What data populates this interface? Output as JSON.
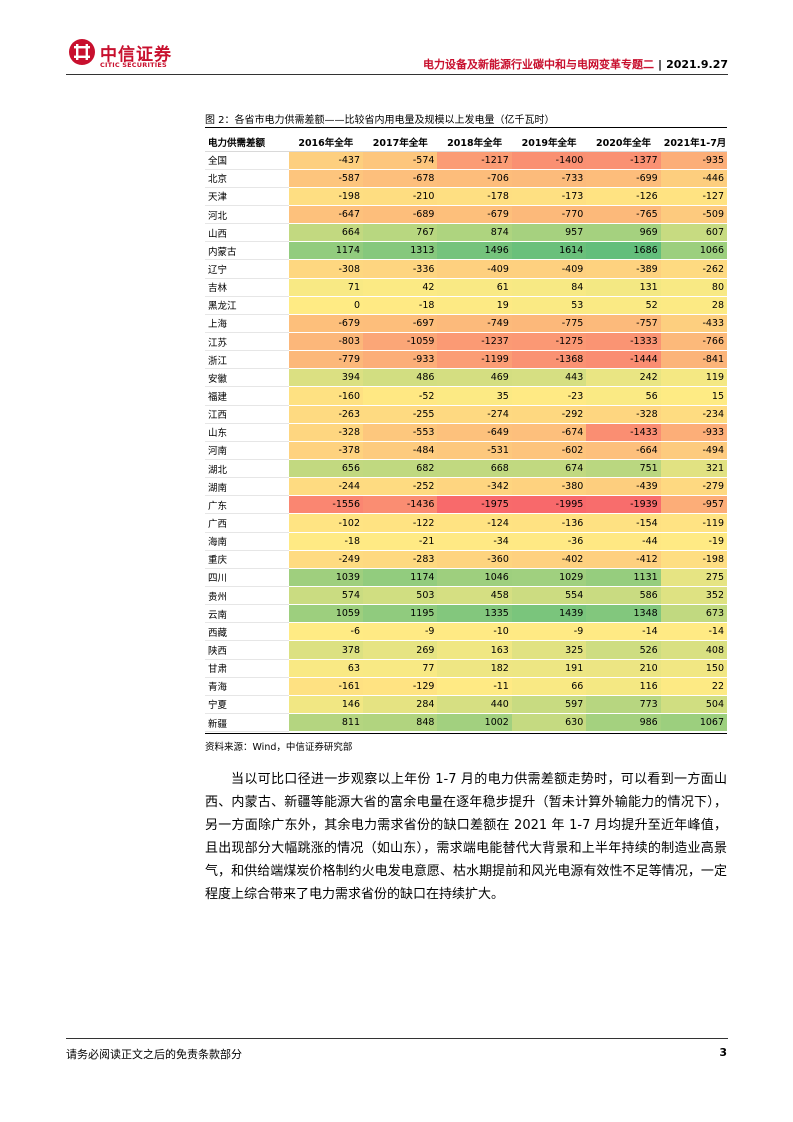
{
  "header": {
    "logo_cn": "中信证券",
    "logo_en": "CITIC SECURITIES",
    "report_title": "电力设备及新能源行业碳中和与电网变革专题二",
    "separator": "|",
    "date": "2021.9.27"
  },
  "figure": {
    "title": "图 2：各省市电力供需差额——比较省内用电量及规模以上发电量（亿千瓦时）",
    "source": "资料来源：Wind，中信证券研究部"
  },
  "chart_data": {
    "type": "table",
    "columns": [
      "电力供需差额",
      "2016年全年",
      "2017年全年",
      "2018年全年",
      "2019年全年",
      "2020年全年",
      "2021年1-7月"
    ],
    "rows": [
      {
        "province": "全国",
        "values": [
          -437,
          -574,
          -1217,
          -1400,
          -1377,
          -935
        ]
      },
      {
        "province": "北京",
        "values": [
          -587,
          -678,
          -706,
          -733,
          -699,
          -446
        ]
      },
      {
        "province": "天津",
        "values": [
          -198,
          -210,
          -178,
          -173,
          -126,
          -127
        ]
      },
      {
        "province": "河北",
        "values": [
          -647,
          -689,
          -679,
          -770,
          -765,
          -509
        ]
      },
      {
        "province": "山西",
        "values": [
          664,
          767,
          874,
          957,
          969,
          607
        ]
      },
      {
        "province": "内蒙古",
        "values": [
          1174,
          1313,
          1496,
          1614,
          1686,
          1066
        ]
      },
      {
        "province": "辽宁",
        "values": [
          -308,
          -336,
          -409,
          -409,
          -389,
          -262
        ]
      },
      {
        "province": "吉林",
        "values": [
          71,
          42,
          61,
          84,
          131,
          80
        ]
      },
      {
        "province": "黑龙江",
        "values": [
          0,
          -18,
          19,
          53,
          52,
          28
        ]
      },
      {
        "province": "上海",
        "values": [
          -679,
          -697,
          -749,
          -775,
          -757,
          -433
        ]
      },
      {
        "province": "江苏",
        "values": [
          -803,
          -1059,
          -1237,
          -1275,
          -1333,
          -766
        ]
      },
      {
        "province": "浙江",
        "values": [
          -779,
          -933,
          -1199,
          -1368,
          -1444,
          -841
        ]
      },
      {
        "province": "安徽",
        "values": [
          394,
          486,
          469,
          443,
          242,
          119
        ]
      },
      {
        "province": "福建",
        "values": [
          -160,
          -52,
          35,
          -23,
          56,
          15
        ]
      },
      {
        "province": "江西",
        "values": [
          -263,
          -255,
          -274,
          -292,
          -328,
          -234
        ]
      },
      {
        "province": "山东",
        "values": [
          -328,
          -553,
          -649,
          -674,
          -1433,
          -933
        ]
      },
      {
        "province": "河南",
        "values": [
          -378,
          -484,
          -531,
          -602,
          -664,
          -494
        ]
      },
      {
        "province": "湖北",
        "values": [
          656,
          682,
          668,
          674,
          751,
          321
        ]
      },
      {
        "province": "湖南",
        "values": [
          -244,
          -252,
          -342,
          -380,
          -439,
          -279
        ]
      },
      {
        "province": "广东",
        "values": [
          -1556,
          -1436,
          -1975,
          -1995,
          -1939,
          -957
        ]
      },
      {
        "province": "广西",
        "values": [
          -102,
          -122,
          -124,
          -136,
          -154,
          -119
        ]
      },
      {
        "province": "海南",
        "values": [
          -18,
          -21,
          -34,
          -36,
          -44,
          -19
        ]
      },
      {
        "province": "重庆",
        "values": [
          -249,
          -283,
          -360,
          -402,
          -412,
          -198
        ]
      },
      {
        "province": "四川",
        "values": [
          1039,
          1174,
          1046,
          1029,
          1131,
          275
        ]
      },
      {
        "province": "贵州",
        "values": [
          574,
          503,
          458,
          554,
          586,
          352
        ]
      },
      {
        "province": "云南",
        "values": [
          1059,
          1195,
          1335,
          1439,
          1348,
          673
        ]
      },
      {
        "province": "西藏",
        "values": [
          -6,
          -9,
          -10,
          -9,
          -14,
          -14
        ]
      },
      {
        "province": "陕西",
        "values": [
          378,
          269,
          163,
          325,
          526,
          408
        ]
      },
      {
        "province": "甘肃",
        "values": [
          63,
          77,
          182,
          191,
          210,
          150
        ]
      },
      {
        "province": "青海",
        "values": [
          -161,
          -129,
          -11,
          66,
          116,
          22
        ]
      },
      {
        "province": "宁夏",
        "values": [
          146,
          284,
          440,
          597,
          773,
          504
        ]
      },
      {
        "province": "新疆",
        "values": [
          811,
          848,
          1002,
          630,
          986,
          1067
        ]
      }
    ],
    "colors": {
      "negative": "#f8696b",
      "neutral": "#ffeb84",
      "positive": "#63be7b"
    }
  },
  "paragraph": "当以可比口径进一步观察以上年份 1-7 月的电力供需差额走势时，可以看到一方面山西、内蒙古、新疆等能源大省的富余电量在逐年稳步提升（暂未计算外输能力的情况下），另一方面除广东外，其余电力需求省份的缺口差额在 2021 年 1-7 月均提升至近年峰值，且出现部分大幅跳涨的情况（如山东），需求端电能替代大背景和上半年持续的制造业高景气，和供给端煤炭价格制约火电发电意愿、枯水期提前和风光电源有效性不足等情况，一定程度上综合带来了电力需求省份的缺口在持续扩大。",
  "footer": {
    "disclaimer": "请务必阅读正文之后的免责条款部分",
    "page_number": "3"
  }
}
